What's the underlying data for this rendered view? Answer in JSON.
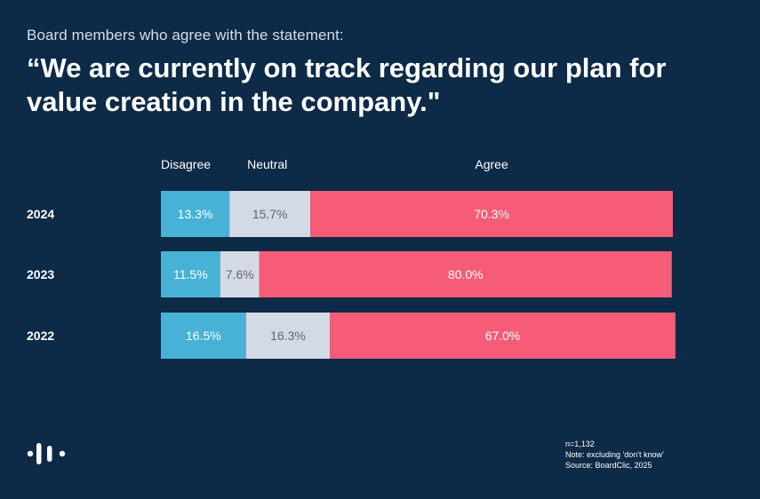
{
  "subtitle": "Board members who agree with the statement:",
  "title": "“We are currently on track regarding our plan for value creation in the company.\"",
  "chart_data": {
    "type": "bar",
    "orientation": "horizontal",
    "stacked": true,
    "categories": [
      "2024",
      "2023",
      "2022"
    ],
    "series": [
      {
        "name": "Disagree",
        "values": [
          13.3,
          11.5,
          16.5
        ],
        "labels": [
          "13.3%",
          "11.5%",
          "16.5%"
        ],
        "color": "#47b2d6",
        "label_color": "#ffffff"
      },
      {
        "name": "Neutral",
        "values": [
          15.7,
          7.6,
          16.3
        ],
        "labels": [
          "15.7%",
          "7.6%",
          "16.3%"
        ],
        "color": "#d3dae3",
        "label_color": "#5d6878"
      },
      {
        "name": "Agree",
        "values": [
          70.3,
          80.0,
          67.0
        ],
        "labels": [
          "70.3%",
          "80.0%",
          "67.0%"
        ],
        "color": "#f65c78",
        "label_color": "#ffffff"
      }
    ],
    "title": "“We are currently on track regarding our plan for value creation in the company.\"",
    "xlabel": "",
    "ylabel": "",
    "legend": "top"
  },
  "footnote": {
    "n": "n=1,132",
    "note": "Note: excluding 'don't know'",
    "source": "Source: BoardClic, 2025"
  },
  "colors": {
    "background": "#0d2a47",
    "disagree": "#47b2d6",
    "neutral": "#d3dae3",
    "agree": "#f65c78"
  }
}
